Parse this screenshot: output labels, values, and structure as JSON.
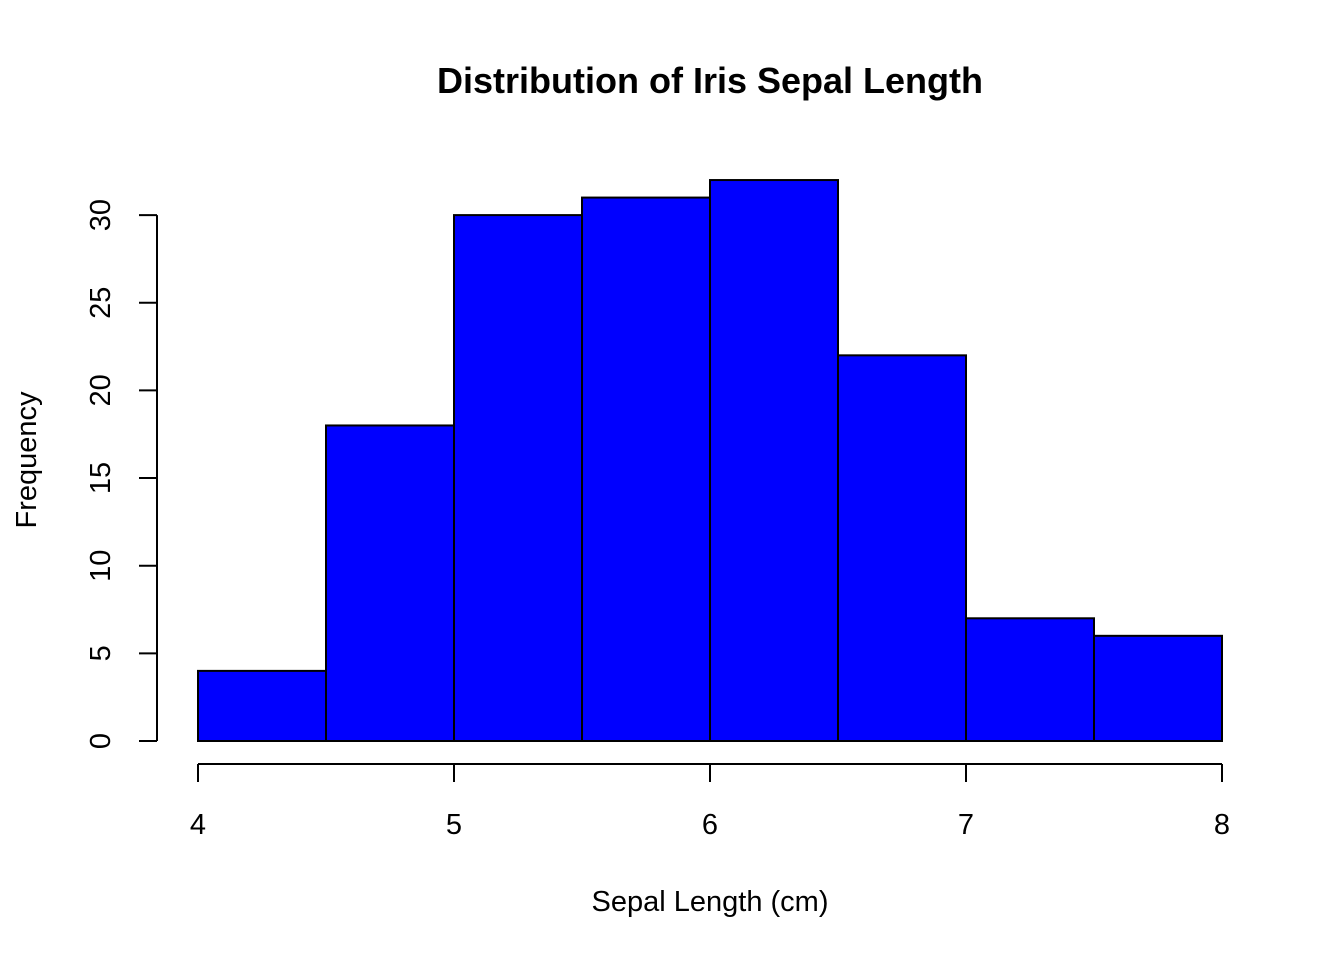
{
  "chart_data": {
    "type": "bar",
    "title": "Distribution of Iris Sepal Length",
    "xlabel": "Sepal Length (cm)",
    "ylabel": "Frequency",
    "bins": [
      {
        "start": 4.0,
        "end": 4.5,
        "count": 4
      },
      {
        "start": 4.5,
        "end": 5.0,
        "count": 18
      },
      {
        "start": 5.0,
        "end": 5.5,
        "count": 30
      },
      {
        "start": 5.5,
        "end": 6.0,
        "count": 31
      },
      {
        "start": 6.0,
        "end": 6.5,
        "count": 32
      },
      {
        "start": 6.5,
        "end": 7.0,
        "count": 22
      },
      {
        "start": 7.0,
        "end": 7.5,
        "count": 7
      },
      {
        "start": 7.5,
        "end": 8.0,
        "count": 6
      }
    ],
    "xlim": [
      4,
      8
    ],
    "ylim": [
      0,
      32
    ],
    "x_ticks": [
      "4",
      "5",
      "6",
      "7",
      "8"
    ],
    "y_ticks": [
      "0",
      "5",
      "10",
      "15",
      "20",
      "25",
      "30"
    ],
    "bar_color": "#0000ff",
    "grid": false,
    "legend": "none"
  }
}
